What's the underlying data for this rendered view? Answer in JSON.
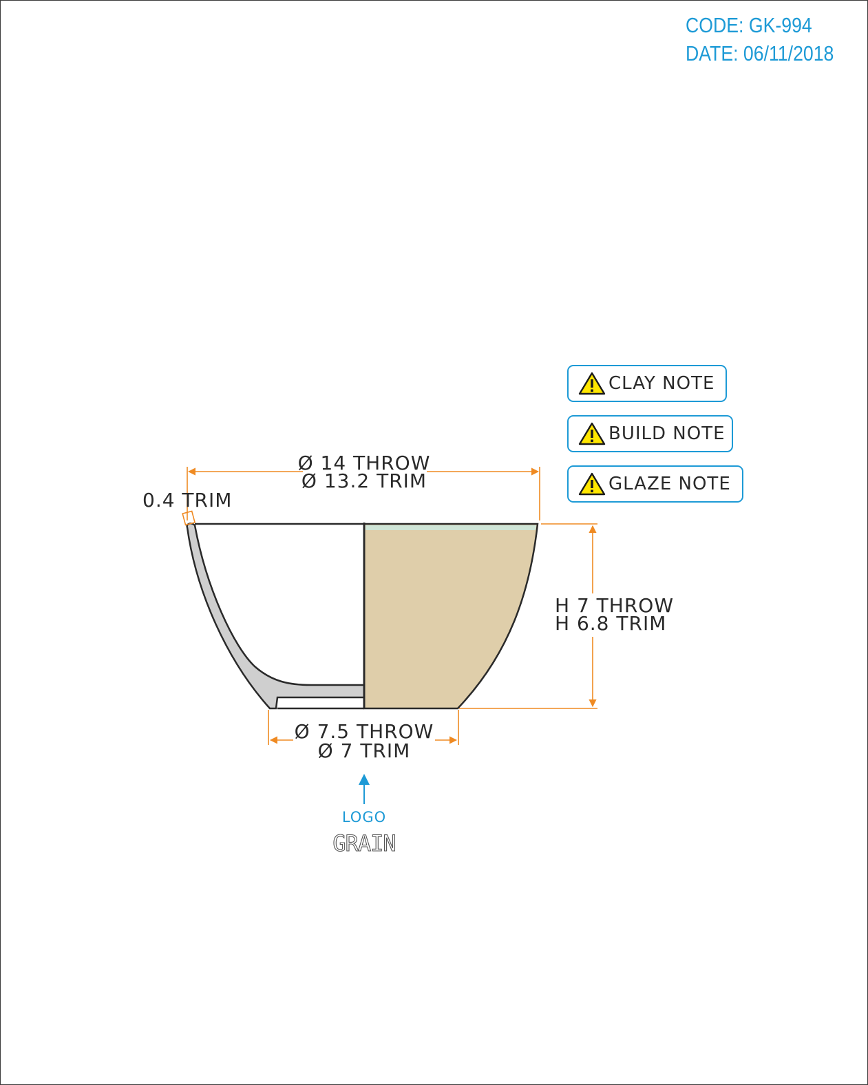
{
  "header": {
    "code": "CODE: GK-994",
    "date": "DATE: 06/11/2018"
  },
  "notes": [
    {
      "label": "CLAY NOTE",
      "icon": "warning-icon"
    },
    {
      "label": "BUILD NOTE",
      "icon": "warning-icon"
    },
    {
      "label": "GLAZE NOTE",
      "icon": "warning-icon"
    }
  ],
  "dimensions": {
    "rim_throw": "Ø 14 THROW",
    "rim_trim": "Ø 13.2 TRIM",
    "wall_trim": "0.4 TRIM",
    "height_throw": "H 7 THROW",
    "height_trim": "H 6.8 TRIM",
    "foot_throw": "Ø 7.5 THROW",
    "foot_trim": "Ø 7 TRIM"
  },
  "logo": {
    "label": "LOGO",
    "mark": "GRAIN"
  },
  "colors": {
    "accent": "#1d9ad6",
    "dimension": "#ef8a22",
    "clay_body": "#dfceaa",
    "glaze_rim": "#cfe5d7",
    "section": "#cfcfcf",
    "outline": "#2a2a2a",
    "warning": "#ffe600"
  }
}
